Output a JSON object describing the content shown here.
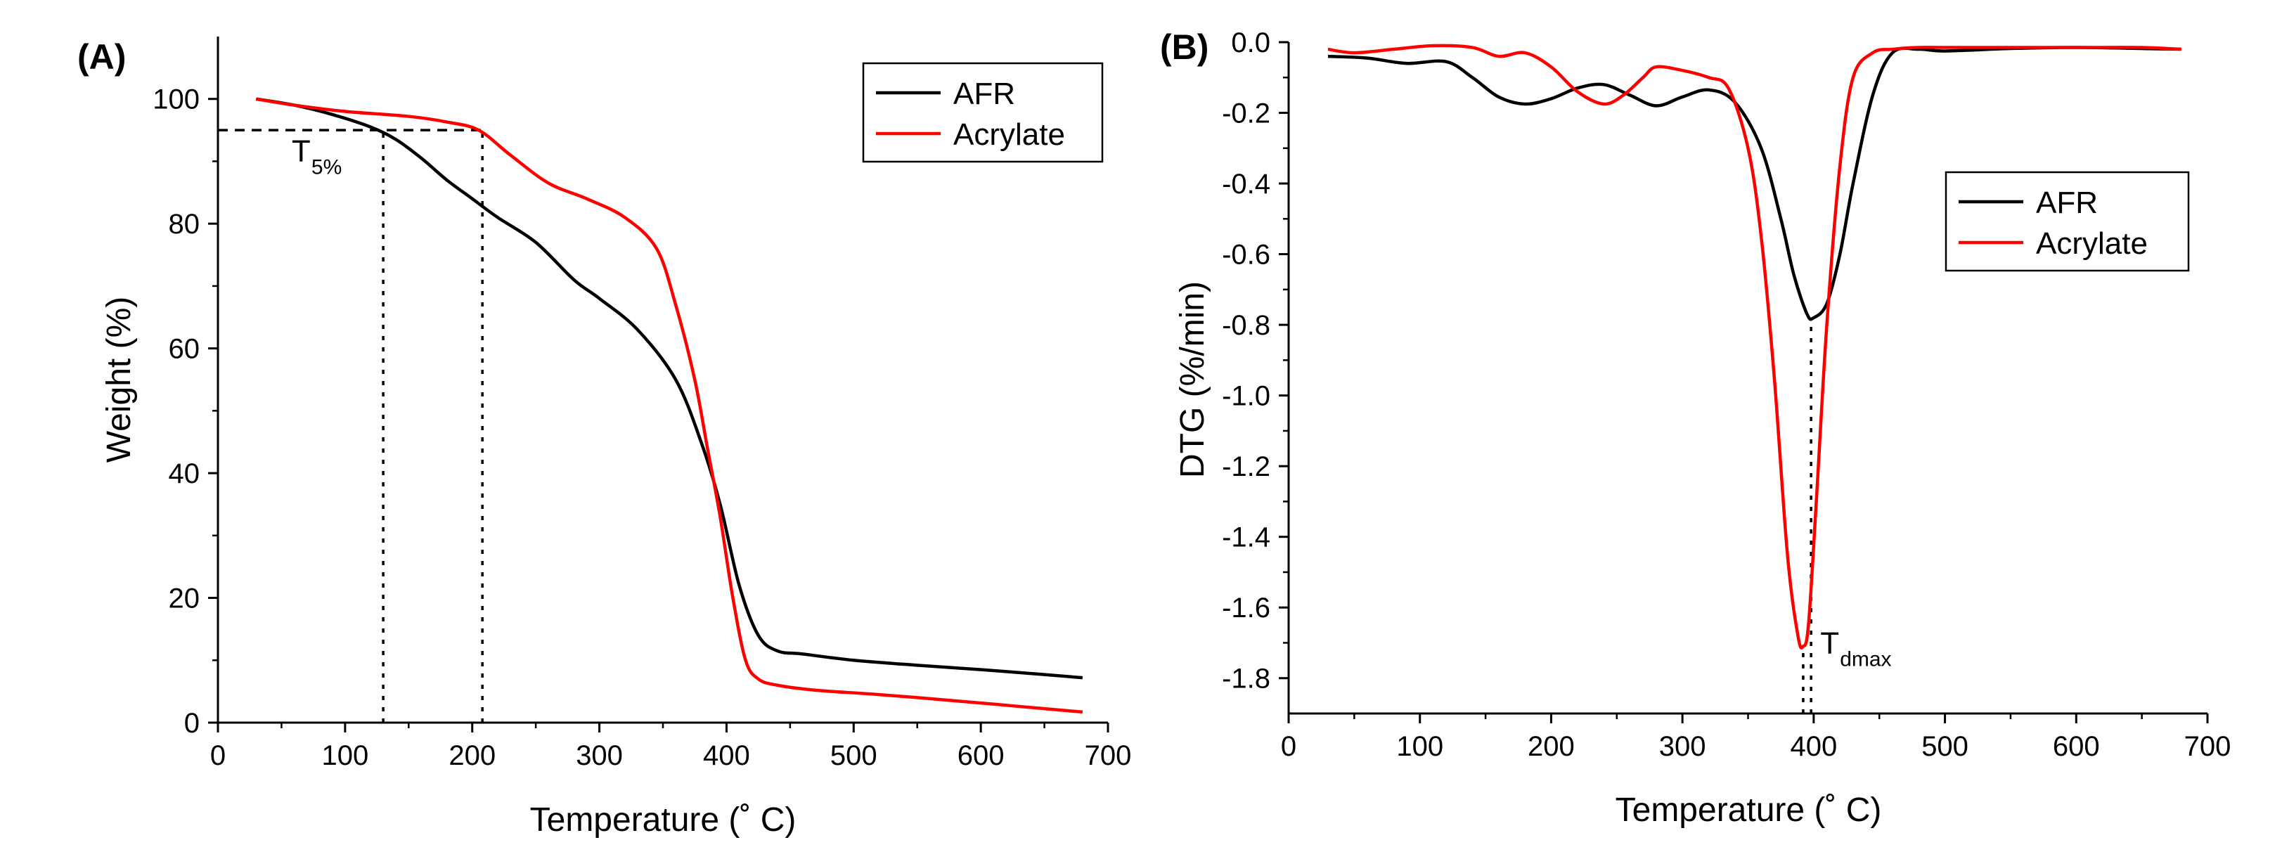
{
  "figure": {
    "colors": {
      "afr": "#000000",
      "acrylate": "#ff0000",
      "axis": "#000000"
    }
  },
  "chart_data": [
    {
      "panel": "(A)",
      "type": "line",
      "title": "",
      "xlabel": "Temperature (˚ C)",
      "ylabel": "Weight (%)",
      "xlim": [
        0,
        700
      ],
      "ylim": [
        0,
        110
      ],
      "xticks": [
        0,
        100,
        200,
        300,
        400,
        500,
        600,
        700
      ],
      "xtick_labels": [
        "0",
        "100",
        "200",
        "300",
        "400",
        "500",
        "600",
        "700"
      ],
      "yticks": [
        0,
        20,
        40,
        60,
        80,
        100
      ],
      "ytick_labels": [
        "0",
        "20",
        "40",
        "60",
        "80",
        "100"
      ],
      "legend": {
        "position": "top-right",
        "entries": [
          "AFR",
          "Acrylate"
        ]
      },
      "series": [
        {
          "name": "AFR",
          "color": "#000000",
          "x": [
            30,
            60,
            90,
            120,
            140,
            160,
            180,
            200,
            220,
            250,
            280,
            300,
            330,
            360,
            380,
            395,
            410,
            425,
            440,
            460,
            500,
            550,
            600,
            650,
            680
          ],
          "y": [
            100,
            99,
            97.5,
            95.5,
            93.5,
            90.5,
            87,
            84,
            81,
            77,
            71,
            68,
            63,
            55,
            45,
            35,
            22,
            14,
            11.5,
            11,
            10,
            9.2,
            8.5,
            7.7,
            7.2
          ]
        },
        {
          "name": "Acrylate",
          "color": "#ff0000",
          "x": [
            30,
            60,
            100,
            150,
            180,
            205,
            230,
            260,
            290,
            320,
            345,
            360,
            375,
            385,
            395,
            405,
            415,
            425,
            440,
            470,
            520,
            580,
            630,
            680
          ],
          "y": [
            100,
            99,
            98,
            97.2,
            96.3,
            95,
            91,
            86.5,
            84,
            81,
            76,
            67,
            55,
            44,
            33,
            20,
            10,
            7,
            6,
            5.2,
            4.5,
            3.5,
            2.6,
            1.7
          ]
        }
      ],
      "annotations": [
        {
          "type": "hline",
          "style": "dashed",
          "y": 95,
          "x_range": [
            0,
            208
          ]
        },
        {
          "type": "vline",
          "style": "dotted",
          "x": 130,
          "y_range": [
            0,
            95
          ]
        },
        {
          "type": "vline",
          "style": "dotted",
          "x": 208,
          "y_range": [
            0,
            95
          ]
        }
      ],
      "label_main": "T",
      "label_sub": "5%",
      "label_x": 58,
      "label_y": 90
    },
    {
      "panel": "(B)",
      "type": "line",
      "title": "",
      "xlabel": "Temperature (˚ C)",
      "ylabel": "DTG (%/min)",
      "xlim": [
        0,
        700
      ],
      "ylim": [
        -1.9,
        0.0
      ],
      "xticks": [
        0,
        100,
        200,
        300,
        400,
        500,
        600,
        700
      ],
      "xtick_labels": [
        "0",
        "100",
        "200",
        "300",
        "400",
        "500",
        "600",
        "700"
      ],
      "yticks": [
        0.0,
        -0.2,
        -0.4,
        -0.6,
        -0.8,
        -1.0,
        -1.2,
        -1.4,
        -1.6,
        -1.8
      ],
      "ytick_labels": [
        "0.0",
        "-0.2",
        "-0.4",
        "-0.6",
        "-0.8",
        "-1.0",
        "-1.2",
        "-1.4",
        "-1.6",
        "-1.8"
      ],
      "legend": {
        "position": "center-right",
        "entries": [
          "AFR",
          "Acrylate"
        ]
      },
      "series": [
        {
          "name": "AFR",
          "color": "#000000",
          "x": [
            30,
            60,
            90,
            120,
            140,
            160,
            180,
            200,
            220,
            240,
            260,
            280,
            300,
            320,
            340,
            360,
            375,
            385,
            395,
            400,
            410,
            420,
            430,
            445,
            460,
            480,
            500,
            550,
            600,
            650,
            680
          ],
          "y": [
            -0.04,
            -0.045,
            -0.06,
            -0.055,
            -0.1,
            -0.155,
            -0.175,
            -0.16,
            -0.13,
            -0.12,
            -0.15,
            -0.18,
            -0.155,
            -0.135,
            -0.17,
            -0.3,
            -0.5,
            -0.66,
            -0.77,
            -0.78,
            -0.74,
            -0.6,
            -0.4,
            -0.15,
            -0.03,
            -0.02,
            -0.025,
            -0.018,
            -0.015,
            -0.018,
            -0.02
          ]
        },
        {
          "name": "Acrylate",
          "color": "#ff0000",
          "x": [
            30,
            50,
            80,
            110,
            140,
            160,
            180,
            200,
            220,
            240,
            255,
            270,
            280,
            300,
            320,
            335,
            350,
            360,
            370,
            380,
            388,
            392,
            396,
            402,
            410,
            420,
            430,
            445,
            460,
            480,
            500,
            550,
            600,
            650,
            680
          ],
          "y": [
            -0.02,
            -0.03,
            -0.02,
            -0.01,
            -0.015,
            -0.04,
            -0.03,
            -0.07,
            -0.14,
            -0.175,
            -0.15,
            -0.1,
            -0.07,
            -0.08,
            -0.1,
            -0.13,
            -0.3,
            -0.55,
            -0.95,
            -1.45,
            -1.68,
            -1.71,
            -1.65,
            -1.3,
            -0.8,
            -0.35,
            -0.1,
            -0.03,
            -0.02,
            -0.015,
            -0.015,
            -0.015,
            -0.015,
            -0.015,
            -0.02
          ]
        }
      ],
      "annotations": [
        {
          "type": "vline",
          "style": "dotted",
          "x": 398,
          "y_range": [
            -1.9,
            -0.78
          ]
        },
        {
          "type": "vline",
          "style": "dotted",
          "x": 392,
          "y_range": [
            -1.9,
            -1.71
          ]
        }
      ],
      "label_main": "T",
      "label_sub": "dmax",
      "label_x": 405,
      "label_y": -1.73
    }
  ]
}
